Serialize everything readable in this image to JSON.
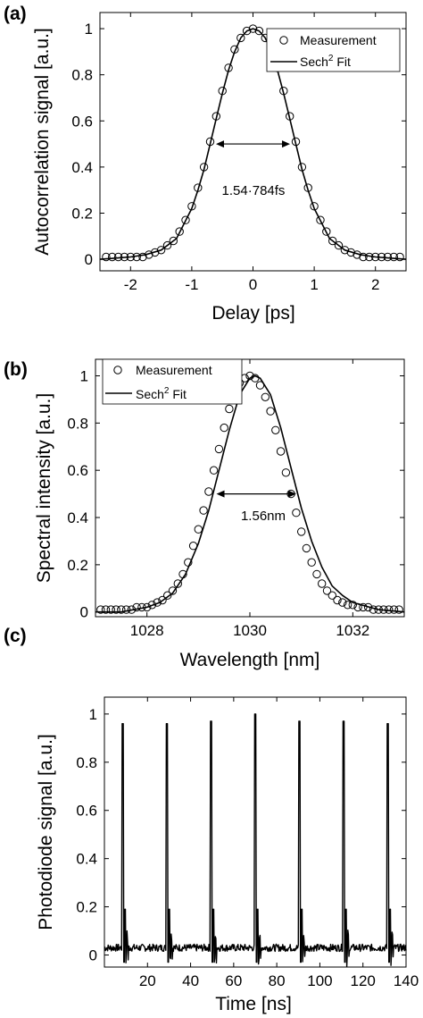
{
  "chart_data": [
    {
      "type": "line",
      "panel_label": "(a)",
      "xlabel": "Delay [ps]",
      "ylabel": "Autocorrelation signal [a.u.]",
      "xlim": [
        -2.5,
        2.5
      ],
      "ylim": [
        -0.05,
        1.07
      ],
      "xticks": [
        -2,
        -1,
        0,
        1,
        2
      ],
      "xtick_labels": [
        "-2",
        "-1",
        "0",
        "1",
        "2"
      ],
      "yticks": [
        0,
        0.2,
        0.4,
        0.6,
        0.8,
        1
      ],
      "ytick_labels": [
        "0",
        "0.2",
        "0.4",
        "0.6",
        "0.8",
        "1"
      ],
      "legend": {
        "position": "top-right",
        "measurement": "Measurement",
        "fit_base": "Sech",
        "fit_sup": "2",
        "fit_tail": " Fit"
      },
      "fwhm": {
        "left": -0.605,
        "right": 0.605,
        "level": 0.5,
        "label": "1.54·784fs"
      },
      "series": [
        {
          "name": "Measurement",
          "style": "markers",
          "x": [
            -2.4,
            -2.3,
            -2.2,
            -2.1,
            -2.0,
            -1.9,
            -1.8,
            -1.7,
            -1.6,
            -1.5,
            -1.4,
            -1.3,
            -1.2,
            -1.1,
            -1.0,
            -0.9,
            -0.8,
            -0.7,
            -0.6,
            -0.5,
            -0.4,
            -0.3,
            -0.2,
            -0.1,
            0.0,
            0.1,
            0.2,
            0.3,
            0.4,
            0.5,
            0.6,
            0.7,
            0.8,
            0.9,
            1.0,
            1.1,
            1.2,
            1.3,
            1.4,
            1.5,
            1.6,
            1.7,
            1.8,
            1.9,
            2.0,
            2.1,
            2.2,
            2.3,
            2.4
          ],
          "y": [
            0.01,
            0.01,
            0.01,
            0.01,
            0.01,
            0.01,
            0.01,
            0.02,
            0.03,
            0.04,
            0.06,
            0.08,
            0.12,
            0.17,
            0.23,
            0.31,
            0.4,
            0.51,
            0.62,
            0.73,
            0.83,
            0.91,
            0.96,
            0.99,
            1.0,
            0.99,
            0.96,
            0.91,
            0.83,
            0.73,
            0.62,
            0.51,
            0.4,
            0.31,
            0.23,
            0.17,
            0.12,
            0.08,
            0.06,
            0.04,
            0.03,
            0.02,
            0.01,
            0.01,
            0.01,
            0.01,
            0.01,
            0.01,
            0.01
          ]
        },
        {
          "name": "Sech2 Fit",
          "style": "line",
          "x": [
            -2.5,
            -2.25,
            -2.0,
            -1.75,
            -1.5,
            -1.25,
            -1.0,
            -0.9,
            -0.8,
            -0.7,
            -0.6,
            -0.5,
            -0.4,
            -0.3,
            -0.2,
            -0.1,
            0.0,
            0.1,
            0.2,
            0.3,
            0.4,
            0.5,
            0.6,
            0.7,
            0.8,
            0.9,
            1.0,
            1.25,
            1.5,
            1.75,
            2.0,
            2.25,
            2.5
          ],
          "y": [
            0.0,
            0.005,
            0.01,
            0.02,
            0.04,
            0.09,
            0.22,
            0.3,
            0.39,
            0.5,
            0.61,
            0.72,
            0.82,
            0.9,
            0.96,
            0.99,
            1.0,
            0.99,
            0.96,
            0.9,
            0.82,
            0.72,
            0.61,
            0.5,
            0.39,
            0.3,
            0.22,
            0.09,
            0.04,
            0.02,
            0.01,
            0.005,
            0.0
          ]
        }
      ]
    },
    {
      "type": "line",
      "panel_label": "(b)",
      "xlabel": "Wavelength [nm]",
      "ylabel": "Spectral intensity [a.u.]",
      "xlim": [
        1027,
        1033
      ],
      "ylim": [
        -0.02,
        1.07
      ],
      "xticks": [
        1028,
        1030,
        1032
      ],
      "xtick_labels": [
        "1028",
        "1030",
        "1032"
      ],
      "yticks": [
        0,
        0.2,
        0.4,
        0.6,
        0.8,
        1
      ],
      "ytick_labels": [
        "0",
        "0.2",
        "0.4",
        "0.6",
        "0.8",
        "1"
      ],
      "legend": {
        "position": "top-left",
        "measurement": "Measurement",
        "fit_base": "Sech",
        "fit_sup": "2",
        "fit_tail": " Fit"
      },
      "fwhm": {
        "left": 1029.35,
        "right": 1030.9,
        "level": 0.5,
        "label": "1.56nm"
      },
      "series": [
        {
          "name": "Measurement",
          "style": "markers",
          "x": [
            1027.1,
            1027.2,
            1027.3,
            1027.4,
            1027.5,
            1027.6,
            1027.7,
            1027.8,
            1027.9,
            1028.0,
            1028.1,
            1028.2,
            1028.3,
            1028.4,
            1028.5,
            1028.6,
            1028.7,
            1028.8,
            1028.9,
            1029.0,
            1029.1,
            1029.2,
            1029.3,
            1029.4,
            1029.5,
            1029.6,
            1029.7,
            1029.8,
            1029.9,
            1030.0,
            1030.1,
            1030.2,
            1030.3,
            1030.4,
            1030.5,
            1030.6,
            1030.7,
            1030.8,
            1030.9,
            1031.0,
            1031.1,
            1031.2,
            1031.3,
            1031.4,
            1031.5,
            1031.6,
            1031.7,
            1031.8,
            1031.9,
            1032.0,
            1032.1,
            1032.2,
            1032.3,
            1032.4,
            1032.5,
            1032.6,
            1032.7,
            1032.8,
            1032.9
          ],
          "y": [
            0.01,
            0.01,
            0.01,
            0.01,
            0.01,
            0.01,
            0.01,
            0.02,
            0.02,
            0.02,
            0.03,
            0.04,
            0.05,
            0.07,
            0.09,
            0.12,
            0.16,
            0.21,
            0.28,
            0.35,
            0.43,
            0.51,
            0.6,
            0.69,
            0.78,
            0.86,
            0.92,
            0.97,
            0.99,
            1.0,
            0.99,
            0.96,
            0.91,
            0.85,
            0.77,
            0.68,
            0.59,
            0.5,
            0.42,
            0.34,
            0.27,
            0.21,
            0.16,
            0.12,
            0.09,
            0.07,
            0.05,
            0.04,
            0.03,
            0.03,
            0.02,
            0.02,
            0.02,
            0.01,
            0.01,
            0.01,
            0.01,
            0.01,
            0.01
          ]
        },
        {
          "name": "Sech2 Fit",
          "style": "line",
          "x": [
            1027.0,
            1027.5,
            1028.0,
            1028.25,
            1028.5,
            1028.75,
            1029.0,
            1029.2,
            1029.4,
            1029.6,
            1029.8,
            1030.0,
            1030.1,
            1030.2,
            1030.4,
            1030.6,
            1030.8,
            1031.0,
            1031.2,
            1031.4,
            1031.6,
            1031.8,
            1032.0,
            1032.5,
            1033.0
          ],
          "y": [
            0.0,
            0.0,
            0.02,
            0.04,
            0.08,
            0.16,
            0.29,
            0.43,
            0.6,
            0.77,
            0.92,
            0.99,
            1.0,
            0.99,
            0.92,
            0.78,
            0.61,
            0.44,
            0.3,
            0.19,
            0.11,
            0.07,
            0.04,
            0.01,
            0.0
          ]
        }
      ]
    },
    {
      "type": "line",
      "panel_label": "(c)",
      "xlabel": "Time [ns]",
      "ylabel": "Photodiode signal [a.u.]",
      "xlim": [
        0,
        140
      ],
      "ylim": [
        -0.05,
        1.07
      ],
      "xticks": [
        20,
        40,
        60,
        80,
        100,
        120,
        140
      ],
      "xtick_labels": [
        "20",
        "40",
        "60",
        "80",
        "100",
        "120",
        "140"
      ],
      "yticks": [
        0,
        0.2,
        0.4,
        0.6,
        0.8,
        1
      ],
      "ytick_labels": [
        "0",
        "0.2",
        "0.4",
        "0.6",
        "0.8",
        "1"
      ],
      "pulses": {
        "times": [
          8.5,
          29,
          49.5,
          70,
          90.5,
          111,
          131.5
        ],
        "peaks": [
          0.96,
          0.96,
          0.97,
          1.0,
          0.97,
          0.97,
          0.96
        ],
        "baseline": 0.03
      },
      "series": [
        {
          "name": "Photodiode signal",
          "style": "line"
        }
      ]
    }
  ]
}
